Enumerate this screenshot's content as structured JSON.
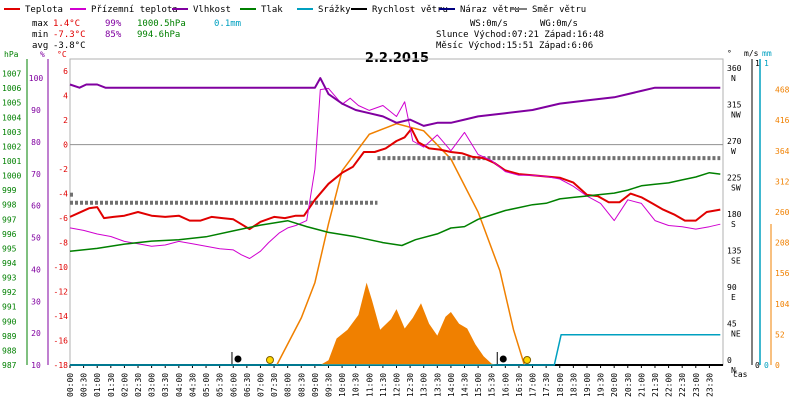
{
  "legend": [
    {
      "label": "Teplota",
      "color": "#e00000"
    },
    {
      "label": "Přízemní teplota",
      "color": "#d000d0"
    },
    {
      "label": "Vlhkost",
      "color": "#8000a0"
    },
    {
      "label": "Tlak",
      "color": "#008000"
    },
    {
      "label": "Srážky",
      "color": "#00a0c0"
    },
    {
      "label": "Rychlost větru",
      "color": "#000000"
    },
    {
      "label": "Náraz větru",
      "color": "#000080"
    },
    {
      "label": "Směr větru",
      "color": "#808080"
    }
  ],
  "stats": {
    "max_label": "max",
    "min_label": "min",
    "avg_label": "avg",
    "max_temp": "1.4°C",
    "max_hum": "99%",
    "max_press": "1000.5hPa",
    "max_rain": "0.1mm",
    "min_temp": "-7.3°C",
    "min_hum": "85%",
    "min_press": "994.6hPa",
    "avg_temp": "-3.8°C",
    "ws": "WS:0m/s",
    "wg": "WG:0m/s",
    "sun": "Slunce  Východ:07:21  Západ:16:48",
    "moon": "Měsíc  Východ:15:51  Západ:6:06"
  },
  "chart_data": {
    "type": "line",
    "title": "2.2.2015",
    "xlabel": "čas",
    "x_hours": [
      0,
      24
    ],
    "x_ticks": [
      "00:00",
      "00:30",
      "01:00",
      "01:30",
      "02:00",
      "02:30",
      "03:00",
      "03:30",
      "04:00",
      "04:30",
      "05:00",
      "05:30",
      "06:00",
      "06:30",
      "07:00",
      "07:30",
      "08:00",
      "08:30",
      "09:00",
      "09:30",
      "10:00",
      "10:30",
      "11:00",
      "11:30",
      "12:00",
      "12:30",
      "13:00",
      "13:30",
      "14:00",
      "14:30",
      "15:00",
      "15:30",
      "16:00",
      "16:30",
      "17:00",
      "17:30",
      "18:00",
      "18:30",
      "19:00",
      "19:30",
      "20:00",
      "20:30",
      "21:00",
      "21:30",
      "22:00",
      "22:30",
      "23:00",
      "23:30"
    ],
    "axes": {
      "pressure": {
        "label": "hPa",
        "range": [
          987,
          1008
        ],
        "ticks": [
          987,
          988,
          989,
          990,
          991,
          992,
          993,
          994,
          995,
          996,
          997,
          998,
          999,
          1000,
          1001,
          1002,
          1003,
          1004,
          1005,
          1006,
          1007
        ]
      },
      "humidity": {
        "label": "%",
        "range": [
          10,
          106
        ],
        "ticks": [
          10,
          20,
          30,
          40,
          50,
          60,
          70,
          80,
          90,
          100
        ]
      },
      "temperature": {
        "label": "°C",
        "range": [
          -18,
          7
        ],
        "ticks": [
          -18,
          -16,
          -14,
          -12,
          -10,
          -8,
          -6,
          -4,
          -2,
          0,
          2,
          4,
          6
        ]
      },
      "direction": {
        "label": "°",
        "ticks": [
          {
            "v": 0,
            "t": "0"
          },
          {
            "v": 45,
            "t": "45"
          },
          {
            "v": 90,
            "t": "90"
          },
          {
            "v": 135,
            "t": "135"
          },
          {
            "v": 180,
            "t": "180"
          },
          {
            "v": 225,
            "t": "225"
          },
          {
            "v": 270,
            "t": "270"
          },
          {
            "v": 315,
            "t": "315"
          },
          {
            "v": 360,
            "t": "360"
          }
        ],
        "dirs": [
          {
            "v": 0,
            "t": "N"
          },
          {
            "v": 45,
            "t": "NE"
          },
          {
            "v": 90,
            "t": "E"
          },
          {
            "v": 135,
            "t": "SE"
          },
          {
            "v": 180,
            "t": "S"
          },
          {
            "v": 225,
            "t": "SW"
          },
          {
            "v": 270,
            "t": "W"
          },
          {
            "v": 315,
            "t": "NW"
          },
          {
            "v": 360,
            "t": "N"
          }
        ]
      },
      "wind": {
        "label": "m/s",
        "ticks": [
          {
            "v": 0,
            "t": "0"
          },
          {
            "v": 1,
            "t": "1"
          }
        ]
      },
      "rain": {
        "label": "mm",
        "ticks": [
          {
            "v": 0,
            "t": "0"
          },
          {
            "v": 1,
            "t": "1"
          }
        ]
      },
      "solar": {
        "range": [
          0,
          520
        ],
        "ticks": [
          0,
          52,
          104,
          156,
          208,
          260,
          312,
          364,
          416,
          468
        ]
      }
    },
    "series": [
      {
        "name": "Teplota",
        "axis": "temperature",
        "color": "#e00000",
        "width": 2,
        "points": [
          [
            0,
            -5.9
          ],
          [
            0.3,
            -5.6
          ],
          [
            0.7,
            -5.2
          ],
          [
            1,
            -5.1
          ],
          [
            1.25,
            -6.0
          ],
          [
            1.6,
            -5.9
          ],
          [
            2,
            -5.8
          ],
          [
            2.5,
            -5.5
          ],
          [
            3,
            -5.8
          ],
          [
            3.5,
            -5.9
          ],
          [
            4,
            -5.8
          ],
          [
            4.4,
            -6.2
          ],
          [
            4.8,
            -6.2
          ],
          [
            5.2,
            -5.9
          ],
          [
            5.6,
            -6.0
          ],
          [
            6,
            -6.1
          ],
          [
            6.3,
            -6.5
          ],
          [
            6.6,
            -6.9
          ],
          [
            7,
            -6.3
          ],
          [
            7.5,
            -5.9
          ],
          [
            7.9,
            -6.0
          ],
          [
            8.3,
            -5.8
          ],
          [
            8.6,
            -5.8
          ],
          [
            9,
            -4.5
          ],
          [
            9.5,
            -3.2
          ],
          [
            10,
            -2.3
          ],
          [
            10.4,
            -1.8
          ],
          [
            10.8,
            -0.6
          ],
          [
            11.2,
            -0.6
          ],
          [
            11.6,
            -0.3
          ],
          [
            12,
            0.3
          ],
          [
            12.3,
            0.6
          ],
          [
            12.55,
            1.3
          ],
          [
            12.8,
            0.2
          ],
          [
            13.2,
            -0.3
          ],
          [
            13.6,
            -0.4
          ],
          [
            14,
            -0.6
          ],
          [
            14.4,
            -0.7
          ],
          [
            14.8,
            -1.0
          ],
          [
            15.2,
            -1.1
          ],
          [
            15.6,
            -1.5
          ],
          [
            16,
            -2.1
          ],
          [
            16.5,
            -2.4
          ],
          [
            17,
            -2.5
          ],
          [
            17.5,
            -2.6
          ],
          [
            18,
            -2.7
          ],
          [
            18.5,
            -3.1
          ],
          [
            19,
            -4.1
          ],
          [
            19.4,
            -4.2
          ],
          [
            19.8,
            -4.7
          ],
          [
            20.2,
            -4.7
          ],
          [
            20.6,
            -4.0
          ],
          [
            21,
            -4.3
          ],
          [
            21.4,
            -4.8
          ],
          [
            21.8,
            -5.3
          ],
          [
            22.2,
            -5.7
          ],
          [
            22.6,
            -6.2
          ],
          [
            23,
            -6.2
          ],
          [
            23.4,
            -5.5
          ],
          [
            23.9,
            -5.3
          ]
        ]
      },
      {
        "name": "Přízemní teplota",
        "axis": "temperature",
        "color": "#d000d0",
        "width": 1,
        "points": [
          [
            0,
            -6.8
          ],
          [
            0.5,
            -7.0
          ],
          [
            1,
            -7.3
          ],
          [
            1.5,
            -7.5
          ],
          [
            2,
            -7.9
          ],
          [
            2.5,
            -8.1
          ],
          [
            3,
            -8.3
          ],
          [
            3.5,
            -8.2
          ],
          [
            4,
            -7.9
          ],
          [
            4.5,
            -8.1
          ],
          [
            5,
            -8.3
          ],
          [
            5.5,
            -8.5
          ],
          [
            6,
            -8.6
          ],
          [
            6.3,
            -9.0
          ],
          [
            6.6,
            -9.3
          ],
          [
            7,
            -8.7
          ],
          [
            7.3,
            -8.0
          ],
          [
            7.7,
            -7.2
          ],
          [
            8,
            -6.8
          ],
          [
            8.3,
            -6.6
          ],
          [
            8.7,
            -6.2
          ],
          [
            9,
            -2.0
          ],
          [
            9.2,
            4.5
          ],
          [
            9.5,
            4.6
          ],
          [
            10,
            3.3
          ],
          [
            10.3,
            3.8
          ],
          [
            10.6,
            3.2
          ],
          [
            11,
            2.8
          ],
          [
            11.5,
            3.2
          ],
          [
            12,
            2.3
          ],
          [
            12.3,
            3.5
          ],
          [
            12.6,
            0.3
          ],
          [
            13,
            -0.2
          ],
          [
            13.5,
            0.8
          ],
          [
            14,
            -0.5
          ],
          [
            14.5,
            1.0
          ],
          [
            15,
            -0.8
          ],
          [
            15.5,
            -1.3
          ],
          [
            16,
            -2.2
          ],
          [
            16.5,
            -2.5
          ],
          [
            17,
            -2.5
          ],
          [
            17.5,
            -2.6
          ],
          [
            18,
            -2.8
          ],
          [
            18.5,
            -3.4
          ],
          [
            19,
            -4.2
          ],
          [
            19.5,
            -4.8
          ],
          [
            20,
            -6.2
          ],
          [
            20.5,
            -4.5
          ],
          [
            21,
            -4.8
          ],
          [
            21.5,
            -6.2
          ],
          [
            22,
            -6.6
          ],
          [
            22.5,
            -6.7
          ],
          [
            23,
            -6.9
          ],
          [
            23.5,
            -6.7
          ],
          [
            23.9,
            -6.5
          ]
        ]
      },
      {
        "name": "Vlhkost",
        "axis": "humidity",
        "color": "#8000a0",
        "width": 2,
        "points": [
          [
            0,
            98
          ],
          [
            0.35,
            97
          ],
          [
            0.6,
            98
          ],
          [
            1,
            98
          ],
          [
            1.3,
            97
          ],
          [
            4,
            97
          ],
          [
            7,
            97
          ],
          [
            9,
            97
          ],
          [
            9.2,
            100
          ],
          [
            9.5,
            95
          ],
          [
            10,
            92
          ],
          [
            10.5,
            90
          ],
          [
            11,
            89
          ],
          [
            11.5,
            88
          ],
          [
            12,
            86
          ],
          [
            12.5,
            87
          ],
          [
            13,
            85
          ],
          [
            13.5,
            86
          ],
          [
            14,
            86
          ],
          [
            14.5,
            87
          ],
          [
            15,
            88
          ],
          [
            16,
            89
          ],
          [
            17,
            90
          ],
          [
            18,
            92
          ],
          [
            19,
            93
          ],
          [
            20,
            94
          ],
          [
            20.5,
            95
          ],
          [
            21,
            96
          ],
          [
            21.5,
            97
          ],
          [
            22,
            97
          ],
          [
            23,
            97
          ],
          [
            23.9,
            97
          ]
        ]
      },
      {
        "name": "Tlak",
        "axis": "pressure",
        "color": "#008000",
        "width": 1.5,
        "points": [
          [
            0,
            994.8
          ],
          [
            1,
            995
          ],
          [
            2,
            995.3
          ],
          [
            3,
            995.5
          ],
          [
            4,
            995.6
          ],
          [
            5,
            995.8
          ],
          [
            6,
            996.2
          ],
          [
            7,
            996.6
          ],
          [
            8,
            996.9
          ],
          [
            8.7,
            996.5
          ],
          [
            9.5,
            996.1
          ],
          [
            10.5,
            995.8
          ],
          [
            11.5,
            995.4
          ],
          [
            12.2,
            995.2
          ],
          [
            12.7,
            995.6
          ],
          [
            13.5,
            996
          ],
          [
            14,
            996.4
          ],
          [
            14.5,
            996.5
          ],
          [
            15,
            997
          ],
          [
            15.5,
            997.3
          ],
          [
            16,
            997.6
          ],
          [
            16.5,
            997.8
          ],
          [
            17,
            998
          ],
          [
            17.5,
            998.1
          ],
          [
            18,
            998.4
          ],
          [
            18.5,
            998.5
          ],
          [
            19,
            998.6
          ],
          [
            19.5,
            998.7
          ],
          [
            20,
            998.8
          ],
          [
            20.5,
            999
          ],
          [
            21,
            999.3
          ],
          [
            21.5,
            999.4
          ],
          [
            22,
            999.5
          ],
          [
            22.5,
            999.7
          ],
          [
            23,
            999.9
          ],
          [
            23.5,
            1000.2
          ],
          [
            23.9,
            1000.1
          ]
        ]
      },
      {
        "name": "Srážky",
        "axis": "rain",
        "color": "#00a0c0",
        "width": 1.5,
        "points": [
          [
            0,
            0
          ],
          [
            17.8,
            0
          ],
          [
            18.05,
            0.1
          ],
          [
            23.9,
            0.1
          ]
        ]
      }
    ],
    "wind_direction": {
      "color": "#707070",
      "segments": [
        {
          "from": 0,
          "to": 11.3,
          "value": 200
        },
        {
          "from": 0,
          "to": 0.15,
          "value": 210
        },
        {
          "from": 11.3,
          "to": 23.9,
          "value": 255
        }
      ]
    },
    "solar_radiation": {
      "color": "#f08000",
      "fill": "#f08000",
      "potential": [
        [
          7.6,
          0
        ],
        [
          8.5,
          80
        ],
        [
          9,
          140
        ],
        [
          9.5,
          240
        ],
        [
          10,
          330
        ],
        [
          11,
          392
        ],
        [
          12,
          410
        ],
        [
          13,
          398
        ],
        [
          14,
          350
        ],
        [
          15,
          260
        ],
        [
          15.8,
          160
        ],
        [
          16.3,
          60
        ],
        [
          16.7,
          0
        ]
      ],
      "measured": [
        [
          9.2,
          0
        ],
        [
          9.5,
          8
        ],
        [
          9.8,
          45
        ],
        [
          10.2,
          60
        ],
        [
          10.6,
          85
        ],
        [
          10.9,
          140
        ],
        [
          11.1,
          110
        ],
        [
          11.4,
          60
        ],
        [
          11.8,
          78
        ],
        [
          12,
          95
        ],
        [
          12.3,
          62
        ],
        [
          12.6,
          80
        ],
        [
          12.9,
          105
        ],
        [
          13.2,
          70
        ],
        [
          13.5,
          50
        ],
        [
          13.8,
          82
        ],
        [
          14,
          90
        ],
        [
          14.3,
          70
        ],
        [
          14.6,
          62
        ],
        [
          14.9,
          35
        ],
        [
          15.2,
          15
        ],
        [
          15.5,
          2
        ],
        [
          15.8,
          0
        ]
      ]
    },
    "markers": {
      "sunrise": 7.35,
      "sunset": 16.8,
      "moonrise": 15.85,
      "moonset": 6.1
    }
  }
}
